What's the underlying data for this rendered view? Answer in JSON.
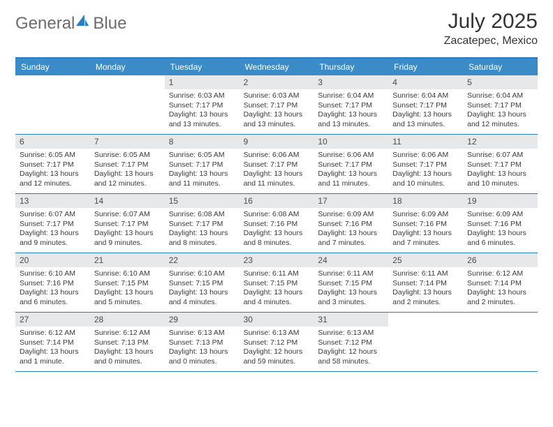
{
  "brand": {
    "name_part1": "General",
    "name_part2": "Blue",
    "icon_color": "#2a7cc0",
    "text_gray": "#6b6b6b"
  },
  "title": {
    "month": "July 2025",
    "location": "Zacatepec, Mexico"
  },
  "colors": {
    "header_bg": "#3b8bc9",
    "header_text": "#ffffff",
    "rule": "#2a7cc0",
    "daynum_bg": "#e7e8e9",
    "body_text": "#3a3a3a",
    "page_bg": "#ffffff"
  },
  "weekdays": [
    "Sunday",
    "Monday",
    "Tuesday",
    "Wednesday",
    "Thursday",
    "Friday",
    "Saturday"
  ],
  "weeks": [
    [
      {
        "empty": true
      },
      {
        "empty": true
      },
      {
        "num": "1",
        "sunrise": "Sunrise: 6:03 AM",
        "sunset": "Sunset: 7:17 PM",
        "daylight": "Daylight: 13 hours and 13 minutes."
      },
      {
        "num": "2",
        "sunrise": "Sunrise: 6:03 AM",
        "sunset": "Sunset: 7:17 PM",
        "daylight": "Daylight: 13 hours and 13 minutes."
      },
      {
        "num": "3",
        "sunrise": "Sunrise: 6:04 AM",
        "sunset": "Sunset: 7:17 PM",
        "daylight": "Daylight: 13 hours and 13 minutes."
      },
      {
        "num": "4",
        "sunrise": "Sunrise: 6:04 AM",
        "sunset": "Sunset: 7:17 PM",
        "daylight": "Daylight: 13 hours and 13 minutes."
      },
      {
        "num": "5",
        "sunrise": "Sunrise: 6:04 AM",
        "sunset": "Sunset: 7:17 PM",
        "daylight": "Daylight: 13 hours and 12 minutes."
      }
    ],
    [
      {
        "num": "6",
        "sunrise": "Sunrise: 6:05 AM",
        "sunset": "Sunset: 7:17 PM",
        "daylight": "Daylight: 13 hours and 12 minutes."
      },
      {
        "num": "7",
        "sunrise": "Sunrise: 6:05 AM",
        "sunset": "Sunset: 7:17 PM",
        "daylight": "Daylight: 13 hours and 12 minutes."
      },
      {
        "num": "8",
        "sunrise": "Sunrise: 6:05 AM",
        "sunset": "Sunset: 7:17 PM",
        "daylight": "Daylight: 13 hours and 11 minutes."
      },
      {
        "num": "9",
        "sunrise": "Sunrise: 6:06 AM",
        "sunset": "Sunset: 7:17 PM",
        "daylight": "Daylight: 13 hours and 11 minutes."
      },
      {
        "num": "10",
        "sunrise": "Sunrise: 6:06 AM",
        "sunset": "Sunset: 7:17 PM",
        "daylight": "Daylight: 13 hours and 11 minutes."
      },
      {
        "num": "11",
        "sunrise": "Sunrise: 6:06 AM",
        "sunset": "Sunset: 7:17 PM",
        "daylight": "Daylight: 13 hours and 10 minutes."
      },
      {
        "num": "12",
        "sunrise": "Sunrise: 6:07 AM",
        "sunset": "Sunset: 7:17 PM",
        "daylight": "Daylight: 13 hours and 10 minutes."
      }
    ],
    [
      {
        "num": "13",
        "sunrise": "Sunrise: 6:07 AM",
        "sunset": "Sunset: 7:17 PM",
        "daylight": "Daylight: 13 hours and 9 minutes."
      },
      {
        "num": "14",
        "sunrise": "Sunrise: 6:07 AM",
        "sunset": "Sunset: 7:17 PM",
        "daylight": "Daylight: 13 hours and 9 minutes."
      },
      {
        "num": "15",
        "sunrise": "Sunrise: 6:08 AM",
        "sunset": "Sunset: 7:17 PM",
        "daylight": "Daylight: 13 hours and 8 minutes."
      },
      {
        "num": "16",
        "sunrise": "Sunrise: 6:08 AM",
        "sunset": "Sunset: 7:16 PM",
        "daylight": "Daylight: 13 hours and 8 minutes."
      },
      {
        "num": "17",
        "sunrise": "Sunrise: 6:09 AM",
        "sunset": "Sunset: 7:16 PM",
        "daylight": "Daylight: 13 hours and 7 minutes."
      },
      {
        "num": "18",
        "sunrise": "Sunrise: 6:09 AM",
        "sunset": "Sunset: 7:16 PM",
        "daylight": "Daylight: 13 hours and 7 minutes."
      },
      {
        "num": "19",
        "sunrise": "Sunrise: 6:09 AM",
        "sunset": "Sunset: 7:16 PM",
        "daylight": "Daylight: 13 hours and 6 minutes."
      }
    ],
    [
      {
        "num": "20",
        "sunrise": "Sunrise: 6:10 AM",
        "sunset": "Sunset: 7:16 PM",
        "daylight": "Daylight: 13 hours and 6 minutes."
      },
      {
        "num": "21",
        "sunrise": "Sunrise: 6:10 AM",
        "sunset": "Sunset: 7:15 PM",
        "daylight": "Daylight: 13 hours and 5 minutes."
      },
      {
        "num": "22",
        "sunrise": "Sunrise: 6:10 AM",
        "sunset": "Sunset: 7:15 PM",
        "daylight": "Daylight: 13 hours and 4 minutes."
      },
      {
        "num": "23",
        "sunrise": "Sunrise: 6:11 AM",
        "sunset": "Sunset: 7:15 PM",
        "daylight": "Daylight: 13 hours and 4 minutes."
      },
      {
        "num": "24",
        "sunrise": "Sunrise: 6:11 AM",
        "sunset": "Sunset: 7:15 PM",
        "daylight": "Daylight: 13 hours and 3 minutes."
      },
      {
        "num": "25",
        "sunrise": "Sunrise: 6:11 AM",
        "sunset": "Sunset: 7:14 PM",
        "daylight": "Daylight: 13 hours and 2 minutes."
      },
      {
        "num": "26",
        "sunrise": "Sunrise: 6:12 AM",
        "sunset": "Sunset: 7:14 PM",
        "daylight": "Daylight: 13 hours and 2 minutes."
      }
    ],
    [
      {
        "num": "27",
        "sunrise": "Sunrise: 6:12 AM",
        "sunset": "Sunset: 7:14 PM",
        "daylight": "Daylight: 13 hours and 1 minute."
      },
      {
        "num": "28",
        "sunrise": "Sunrise: 6:12 AM",
        "sunset": "Sunset: 7:13 PM",
        "daylight": "Daylight: 13 hours and 0 minutes."
      },
      {
        "num": "29",
        "sunrise": "Sunrise: 6:13 AM",
        "sunset": "Sunset: 7:13 PM",
        "daylight": "Daylight: 13 hours and 0 minutes."
      },
      {
        "num": "30",
        "sunrise": "Sunrise: 6:13 AM",
        "sunset": "Sunset: 7:12 PM",
        "daylight": "Daylight: 12 hours and 59 minutes."
      },
      {
        "num": "31",
        "sunrise": "Sunrise: 6:13 AM",
        "sunset": "Sunset: 7:12 PM",
        "daylight": "Daylight: 12 hours and 58 minutes."
      },
      {
        "empty": true
      },
      {
        "empty": true
      }
    ]
  ]
}
